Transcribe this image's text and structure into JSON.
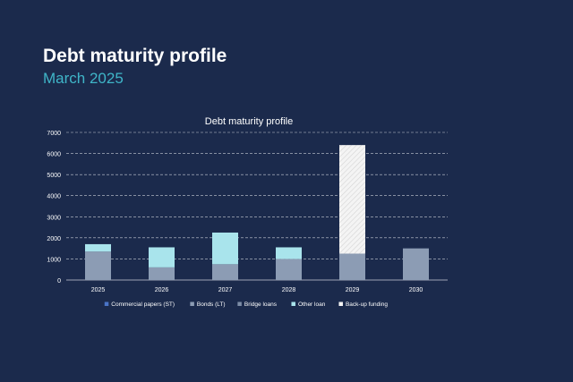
{
  "slide": {
    "title": "Debt maturity profile",
    "subtitle": "March 2025"
  },
  "colors": {
    "background": "#1b2a4c",
    "accent": "#3fb5c8",
    "commercial_papers": "#4a74c7",
    "bonds": "#8c9cb4",
    "bridge_loans": "#7d8da6",
    "other_loan": "#a9e4ec",
    "backup_funding": "#f2f2f2"
  },
  "chart_data": {
    "type": "bar",
    "stacked": true,
    "title": "Debt maturity profile",
    "xlabel": "",
    "ylabel": "",
    "ylim": [
      0,
      7000
    ],
    "yticks": [
      0,
      1000,
      2000,
      3000,
      4000,
      5000,
      6000,
      7000
    ],
    "grid": true,
    "legend_position": "bottom",
    "categories": [
      "2025",
      "2026",
      "2027",
      "2028",
      "2029",
      "2030"
    ],
    "series": [
      {
        "name": "Commercial papers (ST)",
        "color": "#4a74c7",
        "values": [
          0,
          0,
          0,
          0,
          0,
          0
        ]
      },
      {
        "name": "Bonds (LT)",
        "color": "#8c9cb4",
        "values": [
          1350,
          600,
          750,
          1000,
          1250,
          1500
        ]
      },
      {
        "name": "Bridge loans",
        "color": "#7d8da6",
        "values": [
          0,
          0,
          0,
          0,
          0,
          0
        ]
      },
      {
        "name": "Other loan",
        "color": "#a9e4ec",
        "values": [
          350,
          950,
          1500,
          550,
          0,
          0
        ]
      },
      {
        "name": "Back-up funding",
        "color": "#f2f2f2",
        "pattern": "hatched",
        "values": [
          0,
          0,
          0,
          0,
          5150,
          0
        ]
      }
    ]
  }
}
